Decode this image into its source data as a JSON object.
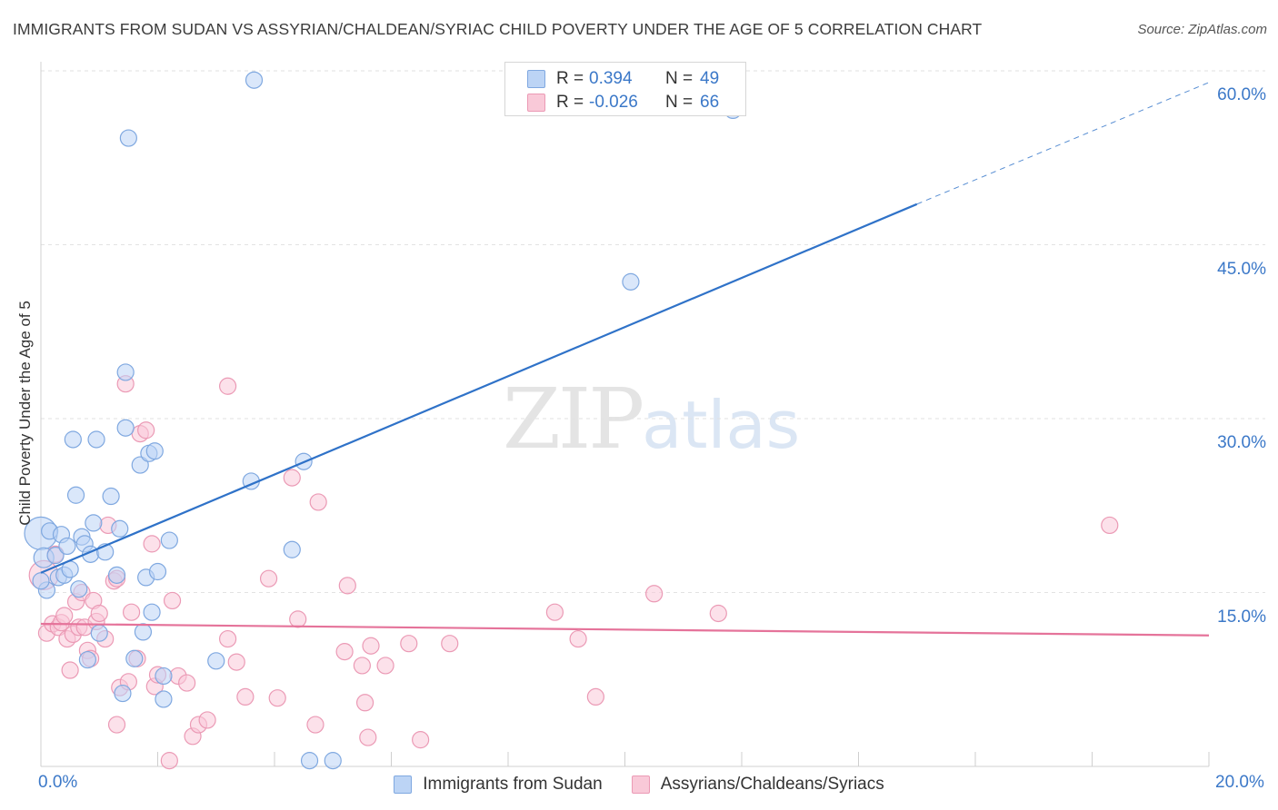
{
  "header": {
    "title": "IMMIGRANTS FROM SUDAN VS ASSYRIAN/CHALDEAN/SYRIAC CHILD POVERTY UNDER THE AGE OF 5 CORRELATION CHART",
    "source": "Source: ZipAtlas.com"
  },
  "watermark": {
    "zip": "ZIP",
    "atlas": "atlas"
  },
  "legend": {
    "rows": [
      {
        "r_label": "R =",
        "r_value": "0.394",
        "n_label": "N =",
        "n_value": "49"
      },
      {
        "r_label": "R =",
        "r_value": "-0.026",
        "n_label": "N =",
        "n_value": "66"
      }
    ]
  },
  "colors": {
    "blue_fill": "#bcd4f5",
    "blue_stroke": "#7fa8e0",
    "blue_line": "#2f72c8",
    "pink_fill": "#f9c9d8",
    "pink_stroke": "#eb9ab5",
    "pink_line": "#e5739a",
    "grid": "#e2e2e2",
    "tick_text": "#3b78c8"
  },
  "chart_data": {
    "type": "scatter",
    "title": "IMMIGRANTS FROM SUDAN VS ASSYRIAN/CHALDEAN/SYRIAC CHILD POVERTY UNDER THE AGE OF 5 CORRELATION CHART",
    "xlabel": "",
    "ylabel": "Child Poverty Under the Age of 5",
    "xlim": [
      0,
      20
    ],
    "ylim": [
      0,
      60
    ],
    "x_tick_labels": [
      "0.0%",
      "20.0%"
    ],
    "y_ticks": [
      15,
      30,
      45,
      60
    ],
    "y_tick_labels": [
      "15.0%",
      "30.0%",
      "45.0%",
      "60.0%"
    ],
    "grid": true,
    "legend_position": "top-center",
    "series": [
      {
        "name": "Immigrants from Sudan",
        "R": 0.394,
        "N": 49,
        "trend": {
          "x": [
            0,
            15
          ],
          "y": [
            16.7,
            48.5
          ],
          "dashed_to": [
            20,
            59.0
          ]
        },
        "points": [
          {
            "x": 0.0,
            "y": 20.1,
            "s": 18
          },
          {
            "x": 0.05,
            "y": 18.0,
            "s": 11
          },
          {
            "x": 0.1,
            "y": 15.2,
            "s": 9
          },
          {
            "x": 0.15,
            "y": 20.3,
            "s": 9
          },
          {
            "x": 0.25,
            "y": 18.2,
            "s": 9
          },
          {
            "x": 0.3,
            "y": 16.3,
            "s": 9
          },
          {
            "x": 0.35,
            "y": 20.0,
            "s": 9
          },
          {
            "x": 0.4,
            "y": 16.5,
            "s": 9
          },
          {
            "x": 0.45,
            "y": 19.0,
            "s": 9
          },
          {
            "x": 0.5,
            "y": 17.0,
            "s": 9
          },
          {
            "x": 0.55,
            "y": 28.2,
            "s": 9
          },
          {
            "x": 0.6,
            "y": 23.4,
            "s": 9
          },
          {
            "x": 0.65,
            "y": 15.3,
            "s": 9
          },
          {
            "x": 0.7,
            "y": 19.8,
            "s": 9
          },
          {
            "x": 0.75,
            "y": 19.2,
            "s": 9
          },
          {
            "x": 0.8,
            "y": 9.2,
            "s": 9
          },
          {
            "x": 0.85,
            "y": 18.3,
            "s": 9
          },
          {
            "x": 0.9,
            "y": 21.0,
            "s": 9
          },
          {
            "x": 0.95,
            "y": 28.2,
            "s": 9
          },
          {
            "x": 1.0,
            "y": 11.5,
            "s": 9
          },
          {
            "x": 1.1,
            "y": 18.5,
            "s": 9
          },
          {
            "x": 1.2,
            "y": 23.3,
            "s": 9
          },
          {
            "x": 1.3,
            "y": 16.5,
            "s": 9
          },
          {
            "x": 1.35,
            "y": 20.5,
            "s": 9
          },
          {
            "x": 1.4,
            "y": 6.3,
            "s": 9
          },
          {
            "x": 1.45,
            "y": 29.2,
            "s": 9
          },
          {
            "x": 1.45,
            "y": 34.0,
            "s": 9
          },
          {
            "x": 1.5,
            "y": 54.2,
            "s": 9
          },
          {
            "x": 1.6,
            "y": 9.3,
            "s": 9
          },
          {
            "x": 1.7,
            "y": 26.0,
            "s": 9
          },
          {
            "x": 1.75,
            "y": 11.6,
            "s": 9
          },
          {
            "x": 1.8,
            "y": 16.3,
            "s": 9
          },
          {
            "x": 1.85,
            "y": 27.0,
            "s": 9
          },
          {
            "x": 1.9,
            "y": 13.3,
            "s": 9
          },
          {
            "x": 1.95,
            "y": 27.2,
            "s": 9
          },
          {
            "x": 2.0,
            "y": 16.8,
            "s": 9
          },
          {
            "x": 2.1,
            "y": 7.8,
            "s": 9
          },
          {
            "x": 2.1,
            "y": 5.8,
            "s": 9
          },
          {
            "x": 2.2,
            "y": 19.5,
            "s": 9
          },
          {
            "x": 3.0,
            "y": 9.1,
            "s": 9
          },
          {
            "x": 3.6,
            "y": 24.6,
            "s": 9
          },
          {
            "x": 3.65,
            "y": 59.2,
            "s": 9
          },
          {
            "x": 4.3,
            "y": 18.7,
            "s": 9
          },
          {
            "x": 4.5,
            "y": 26.3,
            "s": 9
          },
          {
            "x": 4.6,
            "y": 0.5,
            "s": 9
          },
          {
            "x": 5.0,
            "y": 0.5,
            "s": 9
          },
          {
            "x": 10.1,
            "y": 41.8,
            "s": 9
          },
          {
            "x": 11.85,
            "y": 56.6,
            "s": 9
          },
          {
            "x": 0.0,
            "y": 16.0,
            "s": 9
          }
        ]
      },
      {
        "name": "Assyrians/Chaldeans/Syriacs",
        "R": -0.026,
        "N": 66,
        "trend": {
          "x": [
            0,
            20
          ],
          "y": [
            12.3,
            11.3
          ]
        },
        "points": [
          {
            "x": 0.05,
            "y": 16.5,
            "s": 16
          },
          {
            "x": 0.1,
            "y": 11.5,
            "s": 9
          },
          {
            "x": 0.2,
            "y": 12.3,
            "s": 9
          },
          {
            "x": 0.25,
            "y": 18.3,
            "s": 9
          },
          {
            "x": 0.3,
            "y": 12.0,
            "s": 9
          },
          {
            "x": 0.35,
            "y": 12.4,
            "s": 9
          },
          {
            "x": 0.4,
            "y": 13.0,
            "s": 9
          },
          {
            "x": 0.45,
            "y": 11.0,
            "s": 9
          },
          {
            "x": 0.5,
            "y": 8.3,
            "s": 9
          },
          {
            "x": 0.55,
            "y": 11.4,
            "s": 9
          },
          {
            "x": 0.6,
            "y": 14.2,
            "s": 9
          },
          {
            "x": 0.65,
            "y": 12.0,
            "s": 9
          },
          {
            "x": 0.7,
            "y": 15.0,
            "s": 9
          },
          {
            "x": 0.75,
            "y": 12.0,
            "s": 9
          },
          {
            "x": 0.8,
            "y": 10.0,
            "s": 9
          },
          {
            "x": 0.85,
            "y": 9.3,
            "s": 9
          },
          {
            "x": 0.9,
            "y": 14.3,
            "s": 9
          },
          {
            "x": 0.95,
            "y": 12.5,
            "s": 9
          },
          {
            "x": 1.0,
            "y": 13.2,
            "s": 9
          },
          {
            "x": 1.1,
            "y": 11.0,
            "s": 9
          },
          {
            "x": 1.15,
            "y": 20.8,
            "s": 9
          },
          {
            "x": 1.25,
            "y": 16.0,
            "s": 9
          },
          {
            "x": 1.3,
            "y": 16.2,
            "s": 9
          },
          {
            "x": 1.3,
            "y": 3.6,
            "s": 9
          },
          {
            "x": 1.35,
            "y": 6.8,
            "s": 9
          },
          {
            "x": 1.45,
            "y": 33.0,
            "s": 9
          },
          {
            "x": 1.5,
            "y": 7.3,
            "s": 9
          },
          {
            "x": 1.55,
            "y": 13.3,
            "s": 9
          },
          {
            "x": 1.65,
            "y": 9.3,
            "s": 9
          },
          {
            "x": 1.7,
            "y": 28.7,
            "s": 9
          },
          {
            "x": 1.8,
            "y": 29.0,
            "s": 9
          },
          {
            "x": 1.9,
            "y": 19.2,
            "s": 9
          },
          {
            "x": 1.95,
            "y": 6.9,
            "s": 9
          },
          {
            "x": 2.0,
            "y": 7.9,
            "s": 9
          },
          {
            "x": 2.2,
            "y": 0.5,
            "s": 9
          },
          {
            "x": 2.25,
            "y": 14.3,
            "s": 9
          },
          {
            "x": 2.35,
            "y": 7.8,
            "s": 9
          },
          {
            "x": 2.5,
            "y": 7.2,
            "s": 9
          },
          {
            "x": 2.6,
            "y": 2.6,
            "s": 9
          },
          {
            "x": 2.7,
            "y": 3.6,
            "s": 9
          },
          {
            "x": 2.85,
            "y": 4.0,
            "s": 9
          },
          {
            "x": 3.2,
            "y": 11.0,
            "s": 9
          },
          {
            "x": 3.2,
            "y": 32.8,
            "s": 9
          },
          {
            "x": 3.35,
            "y": 9.0,
            "s": 9
          },
          {
            "x": 3.5,
            "y": 6.0,
            "s": 9
          },
          {
            "x": 3.9,
            "y": 16.2,
            "s": 9
          },
          {
            "x": 4.05,
            "y": 5.9,
            "s": 9
          },
          {
            "x": 4.3,
            "y": 24.9,
            "s": 9
          },
          {
            "x": 4.4,
            "y": 12.7,
            "s": 9
          },
          {
            "x": 4.7,
            "y": 3.6,
            "s": 9
          },
          {
            "x": 4.75,
            "y": 22.8,
            "s": 9
          },
          {
            "x": 5.25,
            "y": 15.6,
            "s": 9
          },
          {
            "x": 5.2,
            "y": 9.9,
            "s": 9
          },
          {
            "x": 5.5,
            "y": 8.7,
            "s": 9
          },
          {
            "x": 5.55,
            "y": 5.5,
            "s": 9
          },
          {
            "x": 5.6,
            "y": 2.5,
            "s": 9
          },
          {
            "x": 5.65,
            "y": 10.4,
            "s": 9
          },
          {
            "x": 5.9,
            "y": 8.7,
            "s": 9
          },
          {
            "x": 6.3,
            "y": 10.6,
            "s": 9
          },
          {
            "x": 6.5,
            "y": 2.3,
            "s": 9
          },
          {
            "x": 7.0,
            "y": 10.6,
            "s": 9
          },
          {
            "x": 8.8,
            "y": 13.3,
            "s": 9
          },
          {
            "x": 9.2,
            "y": 11.0,
            "s": 9
          },
          {
            "x": 9.5,
            "y": 6.0,
            "s": 9
          },
          {
            "x": 10.5,
            "y": 14.9,
            "s": 9
          },
          {
            "x": 11.6,
            "y": 13.2,
            "s": 9
          },
          {
            "x": 18.3,
            "y": 20.8,
            "s": 9
          }
        ]
      }
    ]
  }
}
